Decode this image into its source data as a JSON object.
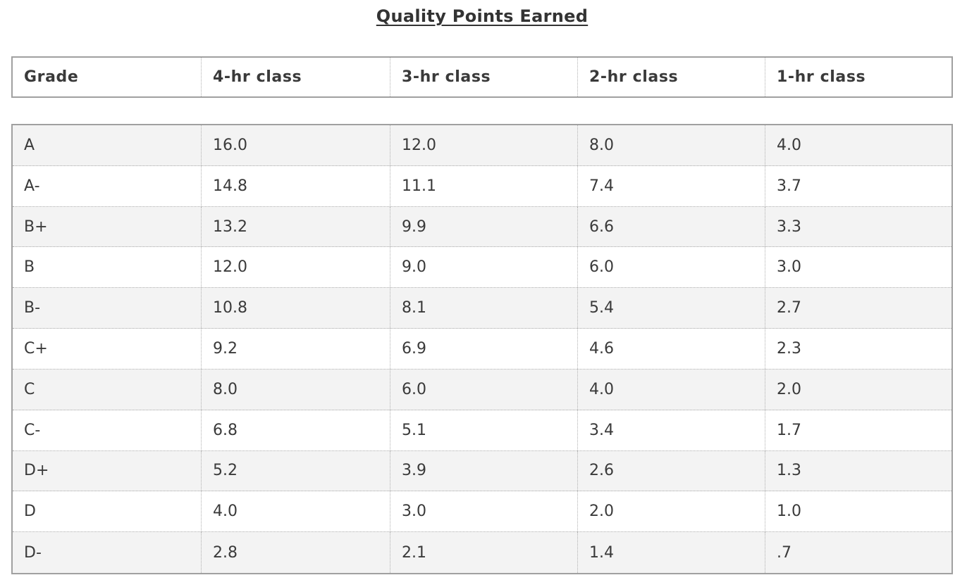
{
  "title": "Quality Points Earned",
  "columns": [
    "Grade",
    "4-hr class",
    "3-hr class",
    "2-hr class",
    "1-hr class"
  ],
  "rows": [
    [
      "A",
      "16.0",
      "12.0",
      "8.0",
      "4.0"
    ],
    [
      "A-",
      "14.8",
      "11.1",
      "7.4",
      "3.7"
    ],
    [
      "B+",
      "13.2",
      "9.9",
      "6.6",
      "3.3"
    ],
    [
      "B",
      "12.0",
      "9.0",
      "6.0",
      "3.0"
    ],
    [
      "B-",
      "10.8",
      "8.1",
      "5.4",
      "2.7"
    ],
    [
      "C+",
      "9.2",
      "6.9",
      "4.6",
      "2.3"
    ],
    [
      "C",
      "8.0",
      "6.0",
      "4.0",
      "2.0"
    ],
    [
      "C-",
      "6.8",
      "5.1",
      "3.4",
      "1.7"
    ],
    [
      "D+",
      "5.2",
      "3.9",
      "2.6",
      "1.3"
    ],
    [
      "D",
      "4.0",
      "3.0",
      "2.0",
      "1.0"
    ],
    [
      "D-",
      "2.8",
      "2.1",
      "1.4",
      ".7"
    ]
  ]
}
